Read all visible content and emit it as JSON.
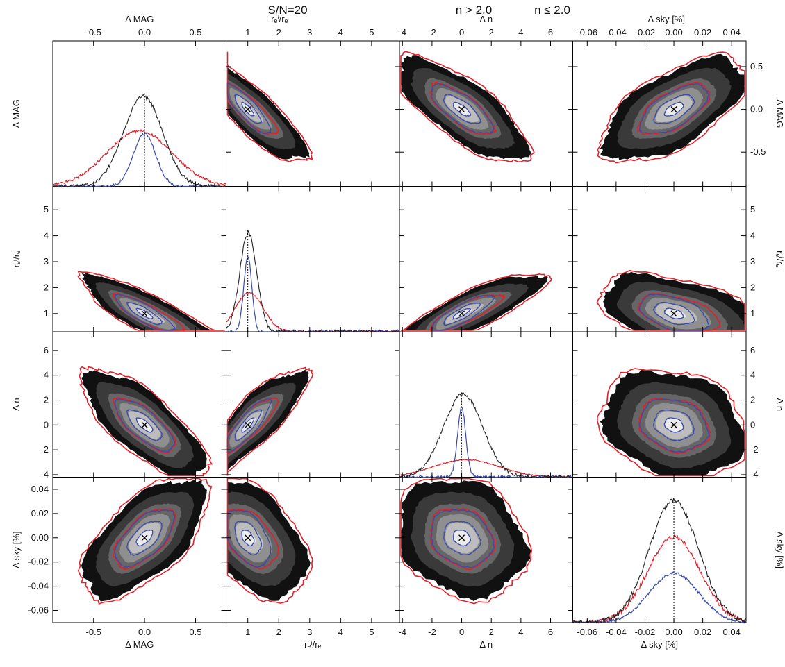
{
  "title": "S/N=20",
  "legend": {
    "entries": [
      {
        "label": "n > 2.0",
        "color": "#e0202a"
      },
      {
        "label": "n ≤ 2.0",
        "color": "#3a4aa8"
      }
    ],
    "placement": "top-right"
  },
  "colors": {
    "density_fill": [
      "#111111",
      "#3a3a3a",
      "#666666",
      "#8f8f8f",
      "#bdbdbd",
      "#ececec"
    ],
    "all_histogram": "#222222",
    "marker": "#000000"
  },
  "chart_data": {
    "type": "corner",
    "signal_to_noise": 20,
    "variables": [
      {
        "key": "dmag",
        "label": "Δ MAG",
        "range": [
          -0.9,
          0.8
        ],
        "ticks": [
          -0.5,
          0.0,
          0.5
        ],
        "tick_labels": [
          "-0.5",
          "0.0",
          "0.5"
        ]
      },
      {
        "key": "rratio",
        "label": "rₑⁱ/rₑ",
        "range": [
          0.3,
          5.9
        ],
        "ticks": [
          1,
          2,
          3,
          4,
          5
        ],
        "tick_labels": [
          "1",
          "2",
          "3",
          "4",
          "5"
        ]
      },
      {
        "key": "dn",
        "label": "Δ n",
        "range": [
          -4.2,
          7.5
        ],
        "ticks": [
          -4,
          -2,
          0,
          2,
          4,
          6
        ],
        "tick_labels": [
          "-4",
          "-2",
          "0",
          "2",
          "4",
          "6"
        ]
      },
      {
        "key": "dsky",
        "label": "Δ sky [%]",
        "range": [
          -0.07,
          0.05
        ],
        "ticks": [
          -0.06,
          -0.04,
          -0.02,
          0.0,
          0.02,
          0.04
        ],
        "tick_labels": [
          "-0.06",
          "-0.04",
          "-0.02",
          "0.00",
          "0.02",
          "0.04"
        ]
      }
    ],
    "true_value_marker": {
      "dmag": 0.0,
      "rratio": 1.0,
      "dn": 0.0,
      "dsky": 0.0
    },
    "histograms": [
      {
        "var": "dmag",
        "all_peak": 0.62,
        "high_n_peak": 0.38,
        "low_n_peak": 0.36,
        "high_n_center": -0.05,
        "high_n_width": 0.32,
        "low_n_width": 0.11
      },
      {
        "var": "rratio",
        "all_peak": 0.68,
        "high_n_peak": 0.27,
        "low_n_peak": 0.52,
        "high_n_center": 1.05,
        "high_n_width": 0.45,
        "low_n_width": 0.13
      },
      {
        "var": "dn",
        "all_peak": 0.57,
        "high_n_peak": 0.12,
        "low_n_peak": 0.48,
        "high_n_center": 0.3,
        "high_n_width": 2.2,
        "low_n_width": 0.28
      },
      {
        "var": "dsky",
        "all_peak": 0.84,
        "high_n_peak": 0.59,
        "low_n_peak": 0.34,
        "high_n_center": 0.0,
        "high_n_width": 0.018,
        "low_n_width": 0.017
      }
    ],
    "joint_distributions": [
      {
        "x": "dmag",
        "y": "rratio",
        "relation": "ratio rises as magnitude becomes brighter",
        "mean": [
          0.0,
          1.0
        ]
      },
      {
        "x": "dmag",
        "y": "dn",
        "relation": "negative correlation",
        "mean": [
          0.0,
          0.0
        ]
      },
      {
        "x": "dmag",
        "y": "dsky",
        "relation": "positive correlation",
        "mean": [
          0.0,
          0.0
        ]
      },
      {
        "x": "rratio",
        "y": "dn",
        "relation": "positive correlation",
        "mean": [
          1.0,
          0.0
        ]
      },
      {
        "x": "rratio",
        "y": "dsky",
        "relation": "negative correlation",
        "mean": [
          1.0,
          0.0
        ]
      },
      {
        "x": "dn",
        "y": "dsky",
        "relation": "weak negative correlation",
        "mean": [
          0.0,
          0.0
        ]
      }
    ],
    "grid": false
  }
}
